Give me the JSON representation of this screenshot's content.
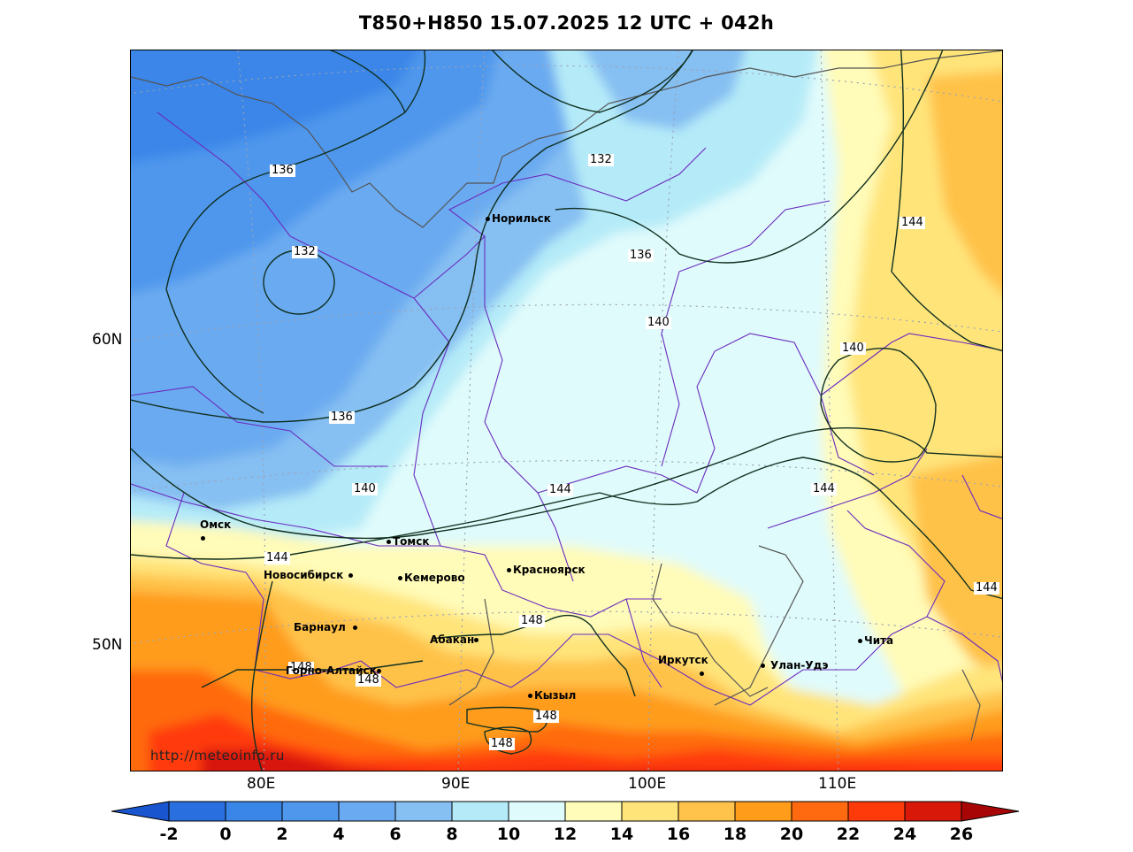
{
  "title": "T850+H850 15.07.2025 12 UTC + 042h",
  "watermark": "http://meteoinfo.ru",
  "axes": {
    "lat_labels": [
      "60N",
      "50N"
    ],
    "lon_labels": [
      "80E",
      "90E",
      "100E",
      "110E"
    ]
  },
  "cities": [
    {
      "name": "Норильск"
    },
    {
      "name": "Омск"
    },
    {
      "name": "Томск"
    },
    {
      "name": "Новосибирск"
    },
    {
      "name": "Кемерово"
    },
    {
      "name": "Красноярск"
    },
    {
      "name": "Барнаул"
    },
    {
      "name": "Абакан"
    },
    {
      "name": "Горно-Алтайск"
    },
    {
      "name": "Кызыл"
    },
    {
      "name": "Иркутск"
    },
    {
      "name": "Улан-Удэ"
    },
    {
      "name": "Чита"
    }
  ],
  "contour_labels": [
    "136",
    "132",
    "132",
    "136",
    "140",
    "140",
    "136",
    "140",
    "144",
    "144",
    "144",
    "144",
    "144",
    "148",
    "148",
    "148",
    "148",
    "148",
    "140"
  ],
  "colorbar": {
    "ticks": [
      "-2",
      "0",
      "2",
      "4",
      "6",
      "8",
      "10",
      "12",
      "14",
      "16",
      "18",
      "20",
      "22",
      "24",
      "26"
    ],
    "colors": [
      "#2a6fe0",
      "#3a86e8",
      "#4f97ec",
      "#6aaaf0",
      "#86bff2",
      "#b5ebf8",
      "#e0fbfb",
      "#fffbb8",
      "#ffe47a",
      "#ffc24a",
      "#ff9c1a",
      "#ff6a10",
      "#ff3a0a",
      "#d81808"
    ],
    "low_color": "#1a55d0",
    "high_color": "#a80606"
  }
}
